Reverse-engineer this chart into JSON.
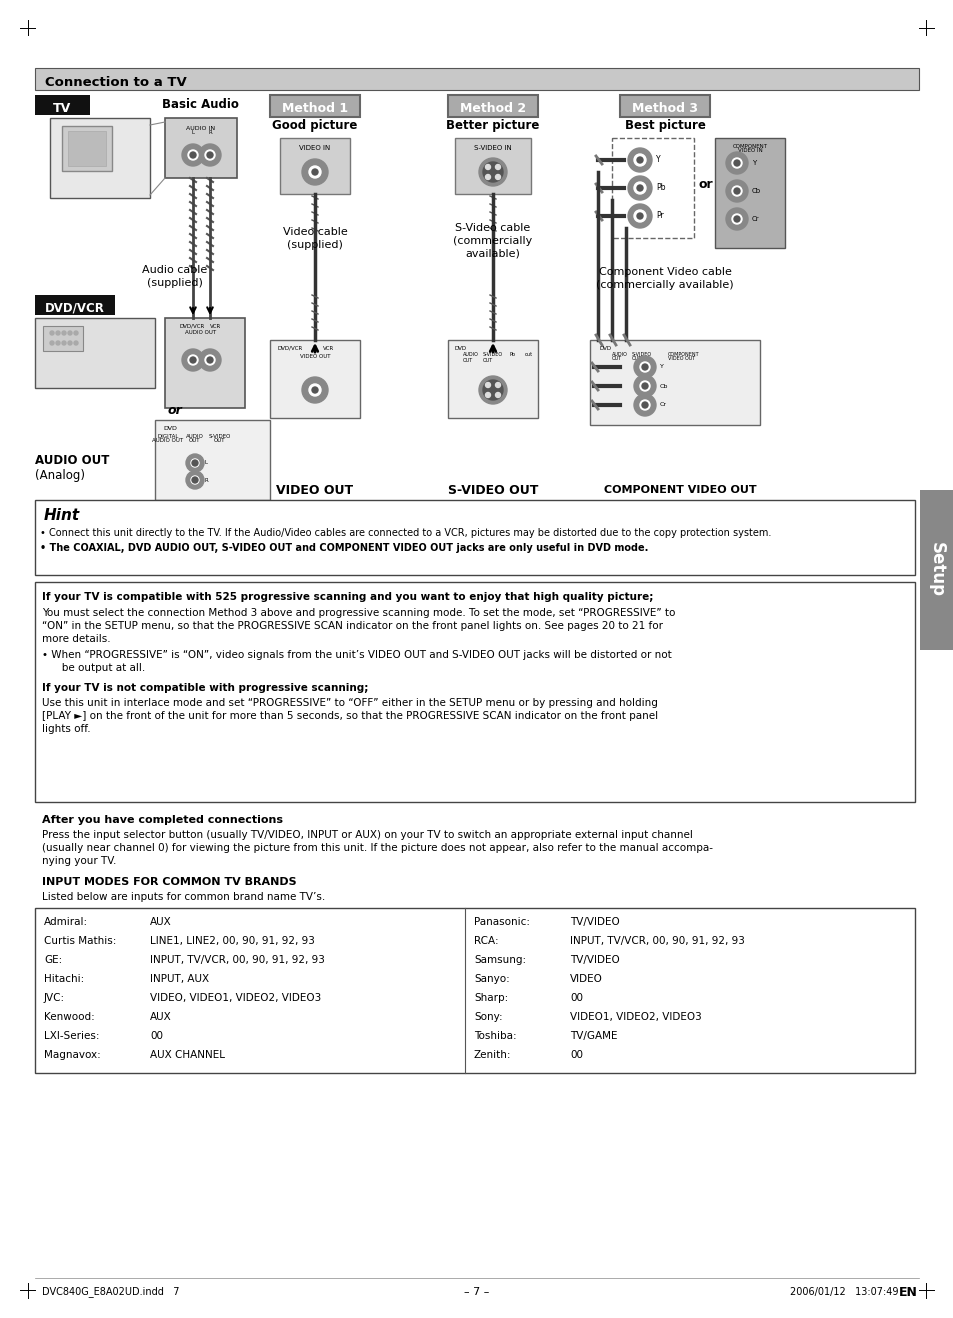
{
  "page_background": "#ffffff",
  "header_bar_color": "#cccccc",
  "header_bar_text": "Connection to a TV",
  "hint_title": "Hint",
  "hint_bullet1": "• Connect this unit directly to the TV. If the Audio/Video cables are connected to a VCR, pictures may be distorted due to the copy protection system.",
  "hint_bullet2": "• The COAXIAL, DVD AUDIO OUT, S-VIDEO OUT and COMPONENT VIDEO OUT jacks are only useful in DVD mode.",
  "progressive_heading1": "If your TV is compatible with 525 progressive scanning and you want to enjoy that high quality picture;",
  "progressive_text1a": "You must select the connection Method 3 above and progressive scanning mode. To set the mode, set “PROGRESSIVE” to",
  "progressive_text1b": "“ON” in the SETUP menu, so that the PROGRESSIVE SCAN indicator on the front panel lights on. See pages 20 to 21 for",
  "progressive_text1c": "more details.",
  "progressive_bullet1a": "• When “PROGRESSIVE” is “ON”, video signals from the unit’s VIDEO OUT and S-VIDEO OUT jacks will be distorted or not",
  "progressive_bullet1b": "   be output at all.",
  "progressive_heading2": "If your TV is not compatible with progressive scanning;",
  "progressive_text2a": "Use this unit in interlace mode and set “PROGRESSIVE” to “OFF” either in the SETUP menu or by pressing and holding",
  "progressive_text2b": "[PLAY ►] on the front of the unit for more than 5 seconds, so that the PROGRESSIVE SCAN indicator on the front panel",
  "progressive_text2c": "lights off.",
  "after_heading": "After you have completed connections",
  "after_text1": "Press the input selector button (usually TV/VIDEO, INPUT or AUX) on your TV to switch an appropriate external input channel",
  "after_text2": "(usually near channel 0) for viewing the picture from this unit. If the picture does not appear, also refer to the manual accompa-",
  "after_text3": "nying your TV.",
  "input_modes_heading": "INPUT MODES FOR COMMON TV BRANDS",
  "input_modes_subtext": "Listed below are inputs for common brand name TV’s.",
  "tv_brands_left": [
    [
      "Admiral:",
      "AUX"
    ],
    [
      "Curtis Mathis:",
      "LINE1, LINE2, 00, 90, 91, 92, 93"
    ],
    [
      "GE:",
      "INPUT, TV/VCR, 00, 90, 91, 92, 93"
    ],
    [
      "Hitachi:",
      "INPUT, AUX"
    ],
    [
      "JVC:",
      "VIDEO, VIDEO1, VIDEO2, VIDEO3"
    ],
    [
      "Kenwood:",
      "AUX"
    ],
    [
      "LXI-Series:",
      "00"
    ],
    [
      "Magnavox:",
      "AUX CHANNEL"
    ]
  ],
  "tv_brands_right": [
    [
      "Panasonic:",
      "TV/VIDEO"
    ],
    [
      "RCA:",
      "INPUT, TV/VCR, 00, 90, 91, 92, 93"
    ],
    [
      "Samsung:",
      "TV/VIDEO"
    ],
    [
      "Sanyo:",
      "VIDEO"
    ],
    [
      "Sharp:",
      "00"
    ],
    [
      "Sony:",
      "VIDEO1, VIDEO2, VIDEO3"
    ],
    [
      "Toshiba:",
      "TV/GAME"
    ],
    [
      "Zenith:",
      "00"
    ]
  ],
  "footer_text_left": "DVC840G_E8A02UD.indd   7",
  "footer_text_center": "– 7 –",
  "footer_text_right": "2006/01/12   13:07:49",
  "footer_en": "EN"
}
